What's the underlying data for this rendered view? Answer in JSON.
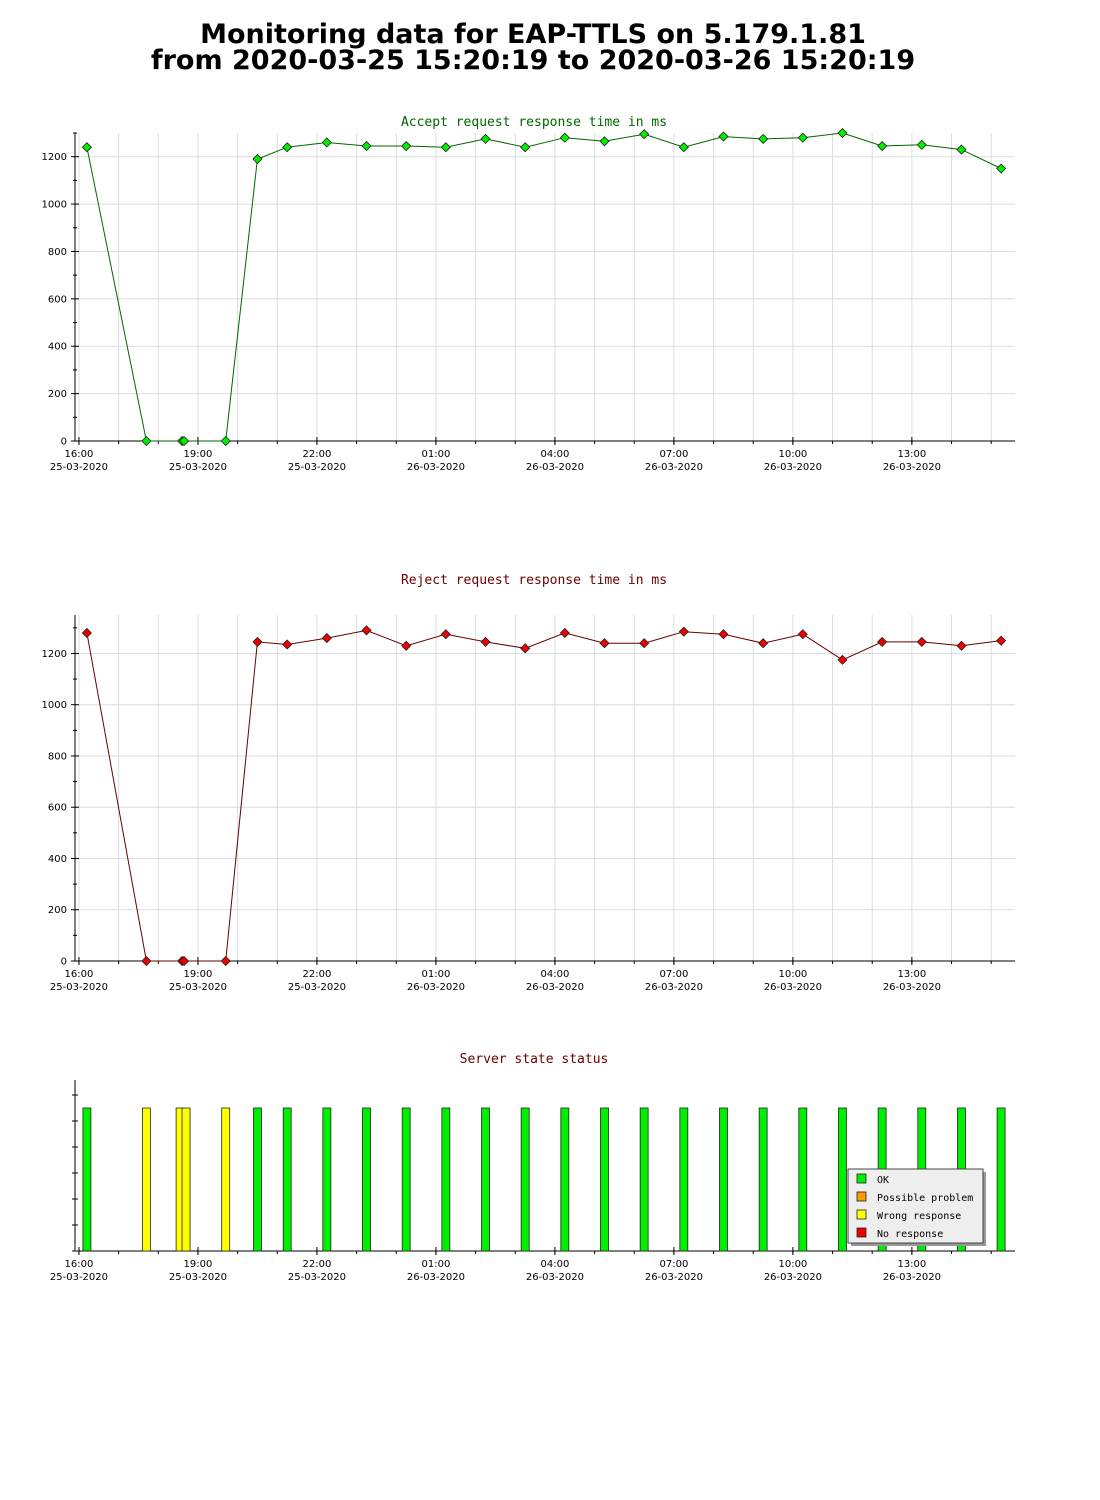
{
  "page": {
    "title_line1": "Monitoring data for EAP-TTLS on 5.179.1.81",
    "title_line2": "from 2020-03-25 15:20:19 to 2020-03-26 15:20:19"
  },
  "colors": {
    "accept_title": "#006600",
    "accept_line": "#006600",
    "accept_marker": "#00ee00",
    "reject_title": "#660000",
    "reject_line": "#660000",
    "reject_marker": "#ee0000",
    "status_title": "#660000",
    "ok": "#00ee00",
    "possible_problem": "#ff9900",
    "wrong_response": "#ffff00",
    "no_response": "#ee0000",
    "grid": "#dddddd"
  },
  "chart_data": [
    {
      "type": "line",
      "title": "Accept request response time in ms",
      "xlim": [
        15.9,
        39.6
      ],
      "ylim": [
        0,
        1300
      ],
      "y_ticks": [
        0,
        200,
        400,
        600,
        800,
        1000,
        1200
      ],
      "x_ticks": [
        {
          "x": 16,
          "time": "16:00",
          "date": "25-03-2020"
        },
        {
          "x": 19,
          "time": "19:00",
          "date": "25-03-2020"
        },
        {
          "x": 22,
          "time": "22:00",
          "date": "25-03-2020"
        },
        {
          "x": 25,
          "time": "01:00",
          "date": "26-03-2020"
        },
        {
          "x": 28,
          "time": "04:00",
          "date": "26-03-2020"
        },
        {
          "x": 31,
          "time": "07:00",
          "date": "26-03-2020"
        },
        {
          "x": 34,
          "time": "10:00",
          "date": "26-03-2020"
        },
        {
          "x": 37,
          "time": "13:00",
          "date": "26-03-2020"
        }
      ],
      "grid": true,
      "series": [
        {
          "x": [
            16.2,
            17.7,
            18.6,
            18.65,
            19.7,
            20.5,
            21.25,
            22.25,
            23.25,
            24.25,
            25.25,
            26.25,
            27.25,
            28.25,
            29.25,
            30.25,
            31.25,
            32.25,
            33.25,
            34.25,
            35.25,
            36.25,
            37.25,
            38.25,
            39.25
          ],
          "y": [
            1240,
            0,
            0,
            0,
            0,
            1190,
            1240,
            1260,
            1245,
            1245,
            1240,
            1275,
            1240,
            1280,
            1265,
            1295,
            1240,
            1285,
            1275,
            1280,
            1300,
            1245,
            1250,
            1230,
            1150
          ]
        }
      ]
    },
    {
      "type": "line",
      "title": "Reject request response time in ms",
      "xlim": [
        15.9,
        39.6
      ],
      "ylim": [
        0,
        1350
      ],
      "y_ticks": [
        0,
        200,
        400,
        600,
        800,
        1000,
        1200
      ],
      "x_ticks": [
        {
          "x": 16,
          "time": "16:00",
          "date": "25-03-2020"
        },
        {
          "x": 19,
          "time": "19:00",
          "date": "25-03-2020"
        },
        {
          "x": 22,
          "time": "22:00",
          "date": "25-03-2020"
        },
        {
          "x": 25,
          "time": "01:00",
          "date": "26-03-2020"
        },
        {
          "x": 28,
          "time": "04:00",
          "date": "26-03-2020"
        },
        {
          "x": 31,
          "time": "07:00",
          "date": "26-03-2020"
        },
        {
          "x": 34,
          "time": "10:00",
          "date": "26-03-2020"
        },
        {
          "x": 37,
          "time": "13:00",
          "date": "26-03-2020"
        }
      ],
      "grid": true,
      "series": [
        {
          "x": [
            16.2,
            17.7,
            18.6,
            18.65,
            19.7,
            20.5,
            21.25,
            22.25,
            23.25,
            24.25,
            25.25,
            26.25,
            27.25,
            28.25,
            29.25,
            30.25,
            31.25,
            32.25,
            33.25,
            34.25,
            35.25,
            36.25,
            37.25,
            38.25,
            39.25
          ],
          "y": [
            1280,
            0,
            0,
            0,
            0,
            1245,
            1235,
            1260,
            1290,
            1230,
            1275,
            1245,
            1220,
            1280,
            1240,
            1240,
            1285,
            1275,
            1240,
            1275,
            1175,
            1245,
            1245,
            1230,
            1250
          ]
        }
      ]
    },
    {
      "type": "bar",
      "title": "Server state status",
      "xlim": [
        15.9,
        39.6
      ],
      "x_ticks": [
        {
          "x": 16,
          "time": "16:00",
          "date": "25-03-2020"
        },
        {
          "x": 19,
          "time": "19:00",
          "date": "25-03-2020"
        },
        {
          "x": 22,
          "time": "22:00",
          "date": "25-03-2020"
        },
        {
          "x": 25,
          "time": "01:00",
          "date": "26-03-2020"
        },
        {
          "x": 28,
          "time": "04:00",
          "date": "26-03-2020"
        },
        {
          "x": 31,
          "time": "07:00",
          "date": "26-03-2020"
        },
        {
          "x": 34,
          "time": "10:00",
          "date": "26-03-2020"
        },
        {
          "x": 37,
          "time": "13:00",
          "date": "26-03-2020"
        }
      ],
      "grid": false,
      "bars": [
        {
          "x": 16.2,
          "state": "ok"
        },
        {
          "x": 17.7,
          "state": "wrong_response"
        },
        {
          "x": 18.55,
          "state": "wrong_response"
        },
        {
          "x": 18.7,
          "state": "wrong_response"
        },
        {
          "x": 19.7,
          "state": "wrong_response"
        },
        {
          "x": 20.5,
          "state": "ok"
        },
        {
          "x": 21.25,
          "state": "ok"
        },
        {
          "x": 22.25,
          "state": "ok"
        },
        {
          "x": 23.25,
          "state": "ok"
        },
        {
          "x": 24.25,
          "state": "ok"
        },
        {
          "x": 25.25,
          "state": "ok"
        },
        {
          "x": 26.25,
          "state": "ok"
        },
        {
          "x": 27.25,
          "state": "ok"
        },
        {
          "x": 28.25,
          "state": "ok"
        },
        {
          "x": 29.25,
          "state": "ok"
        },
        {
          "x": 30.25,
          "state": "ok"
        },
        {
          "x": 31.25,
          "state": "ok"
        },
        {
          "x": 32.25,
          "state": "ok"
        },
        {
          "x": 33.25,
          "state": "ok"
        },
        {
          "x": 34.25,
          "state": "ok"
        },
        {
          "x": 35.25,
          "state": "ok"
        },
        {
          "x": 36.25,
          "state": "ok"
        },
        {
          "x": 37.25,
          "state": "ok"
        },
        {
          "x": 38.25,
          "state": "ok"
        },
        {
          "x": 39.25,
          "state": "ok"
        }
      ],
      "legend": {
        "placement": "bottom-right",
        "entries": [
          {
            "key": "ok",
            "label": "OK"
          },
          {
            "key": "possible_problem",
            "label": "Possible problem"
          },
          {
            "key": "wrong_response",
            "label": "Wrong response"
          },
          {
            "key": "no_response",
            "label": "No response"
          }
        ]
      }
    }
  ]
}
